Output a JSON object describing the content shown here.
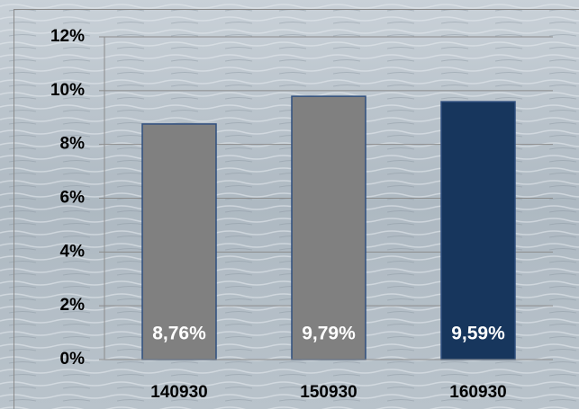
{
  "chart_data": {
    "type": "bar",
    "categories": [
      "140930",
      "150930",
      "160930"
    ],
    "values": [
      8.76,
      9.79,
      9.59
    ],
    "value_labels": [
      "8,76%",
      "9,79%",
      "9,59%"
    ],
    "colors": [
      "#808080",
      "#808080",
      "#17365d"
    ],
    "ylim": [
      0,
      12
    ],
    "yticks": [
      {
        "value": 0,
        "label": "0%"
      },
      {
        "value": 2,
        "label": "2%"
      },
      {
        "value": 4,
        "label": "4%"
      },
      {
        "value": 6,
        "label": "6%"
      },
      {
        "value": 8,
        "label": "8%"
      },
      {
        "value": 10,
        "label": "10%"
      },
      {
        "value": 12,
        "label": "12%"
      }
    ],
    "grid": true
  }
}
